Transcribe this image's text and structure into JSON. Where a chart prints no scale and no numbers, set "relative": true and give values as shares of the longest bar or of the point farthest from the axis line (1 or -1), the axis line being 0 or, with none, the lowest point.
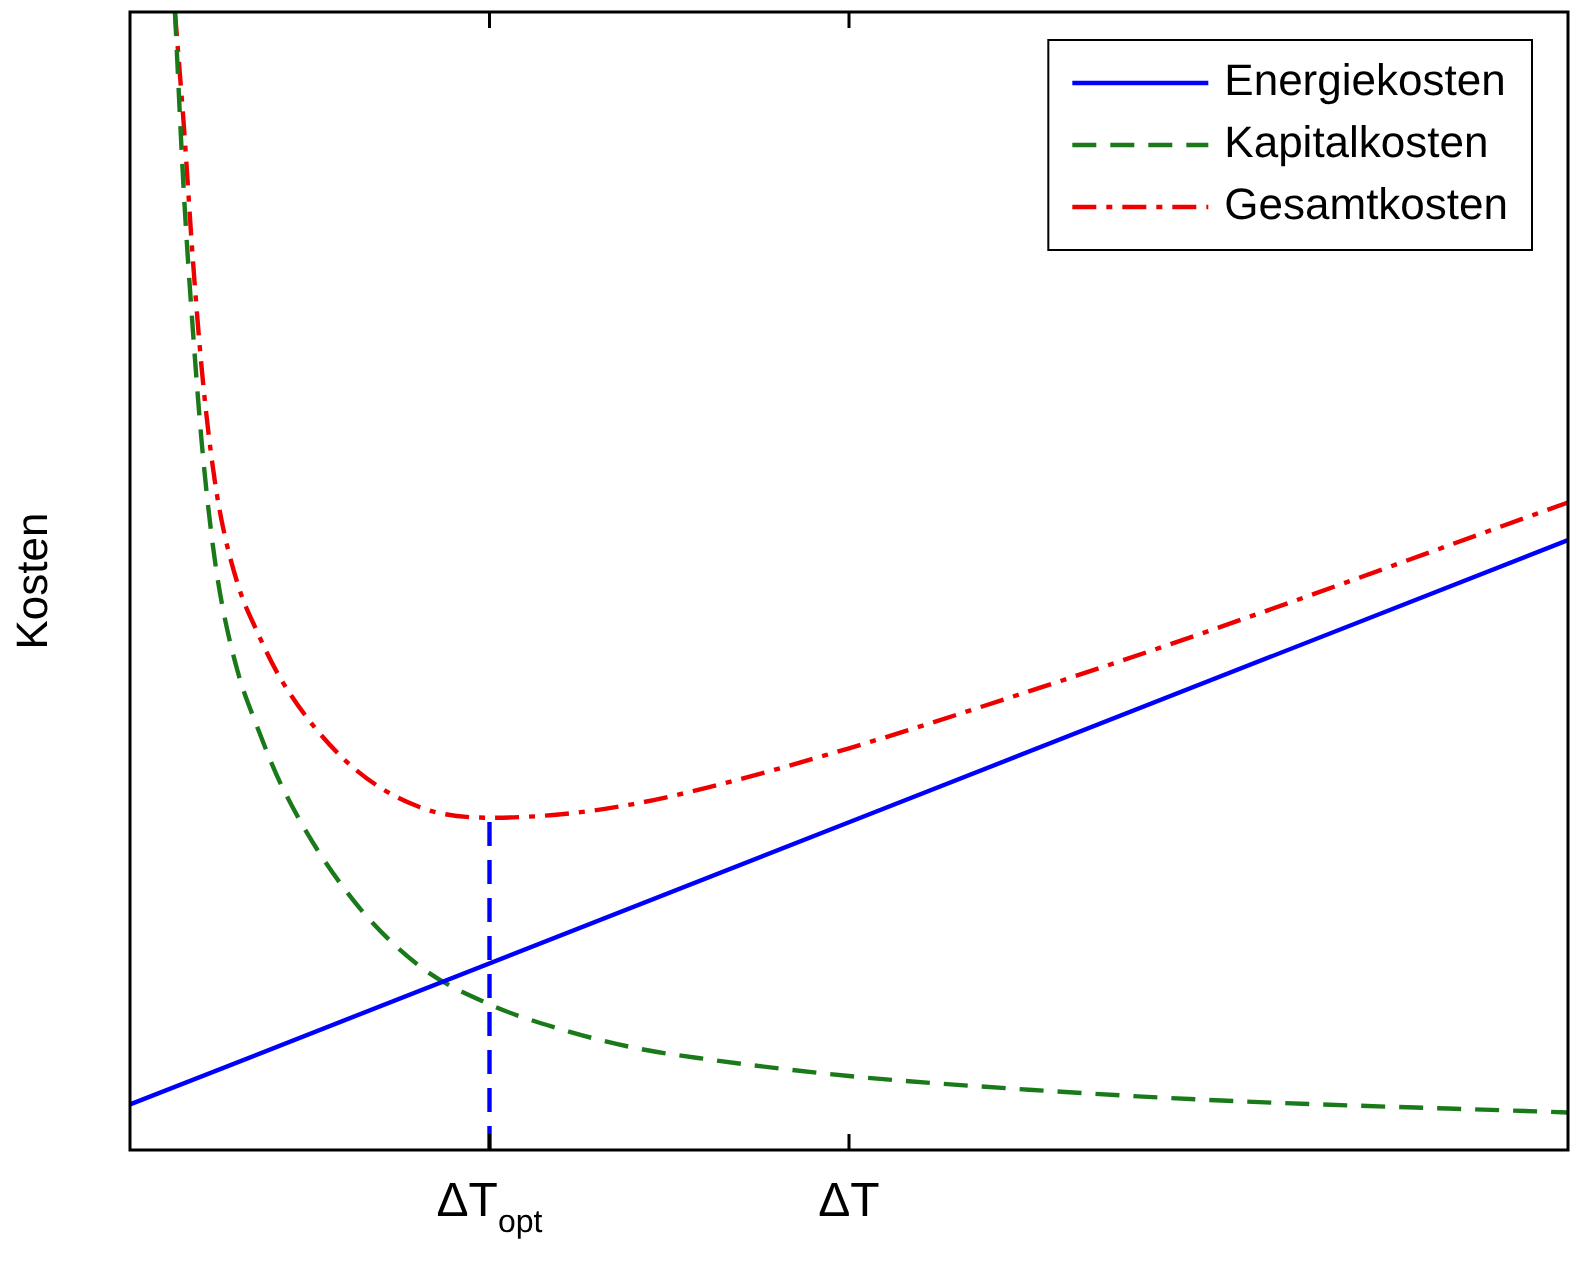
{
  "chart_data": {
    "type": "line",
    "relative": true,
    "ylabel": "Kosten",
    "categories": [
      null,
      null,
      null,
      null,
      null,
      null,
      null,
      null,
      null,
      null,
      null,
      null,
      null,
      null,
      null,
      null,
      null,
      null,
      null,
      null,
      null,
      null,
      null,
      null,
      null,
      null,
      null,
      null,
      null,
      null,
      null,
      null,
      null,
      null,
      null,
      null,
      null,
      null,
      null,
      null,
      "ΔT$_{opt}$",
      null,
      null,
      null,
      null,
      null,
      null,
      null,
      null,
      null,
      null,
      null,
      null,
      null,
      null,
      null,
      null,
      null,
      null,
      null,
      null,
      null,
      null,
      null,
      null,
      null,
      null,
      null,
      null,
      null,
      null,
      null,
      null,
      null,
      null,
      null,
      null,
      null,
      null,
      null,
      "ΔT",
      null,
      null,
      null,
      null,
      null,
      null,
      null,
      null,
      null,
      null,
      null,
      null,
      null,
      null,
      null,
      null,
      null,
      null,
      null,
      null,
      null,
      null,
      null,
      null,
      null,
      null,
      null,
      null,
      null,
      null,
      null,
      null,
      null,
      null,
      null,
      null,
      null,
      null,
      null,
      null,
      null,
      null,
      null,
      null,
      null,
      null,
      null,
      null,
      null,
      null,
      null,
      null,
      null,
      null,
      null,
      null,
      null,
      null,
      null,
      null,
      null,
      null,
      null,
      null,
      null,
      null,
      null,
      null,
      null,
      null,
      null,
      null,
      null,
      null,
      null,
      null,
      null,
      null,
      null,
      null
    ],
    "legend": "top right",
    "grid": false,
    "marker": "none",
    "ref_lines": [
      {
        "axis": "x",
        "value": "ΔT$_{opt}$",
        "color": "#0000ff",
        "line_style": "dashed"
      }
    ],
    "series": [
      {
        "name": "Energiekosten",
        "color": "#0000ff",
        "line_style": "solid",
        "values": [
          0.04,
          null,
          null,
          null,
          null,
          null,
          null,
          null,
          null,
          null,
          null,
          null,
          null,
          null,
          null,
          null,
          null,
          null,
          null,
          null,
          null,
          null,
          null,
          null,
          null,
          null,
          null,
          null,
          null,
          null,
          null,
          null,
          null,
          null,
          null,
          null,
          null,
          null,
          null,
          null,
          null,
          null,
          null,
          null,
          null,
          null,
          null,
          null,
          null,
          null,
          null,
          null,
          null,
          null,
          null,
          null,
          null,
          null,
          null,
          null,
          null,
          null,
          null,
          null,
          null,
          null,
          null,
          null,
          null,
          null,
          null,
          null,
          null,
          null,
          null,
          null,
          null,
          null,
          null,
          null,
          null,
          null,
          null,
          null,
          null,
          null,
          null,
          null,
          null,
          null,
          null,
          null,
          null,
          null,
          null,
          null,
          null,
          null,
          null,
          null,
          null,
          null,
          null,
          null,
          null,
          null,
          null,
          null,
          null,
          null,
          null,
          null,
          null,
          null,
          null,
          null,
          null,
          null,
          null,
          null,
          null,
          null,
          null,
          null,
          null,
          null,
          null,
          null,
          null,
          null,
          null,
          null,
          null,
          null,
          null,
          null,
          null,
          null,
          null,
          null,
          null,
          null,
          null,
          null,
          null,
          null,
          null,
          null,
          null,
          null,
          null,
          null,
          null,
          null,
          null,
          null,
          null,
          null,
          null,
          null,
          0.536
        ]
      },
      {
        "name": "Kapitalkosten",
        "color": "#1a7a1a",
        "line_style": "dashed",
        "values": [
          null,
          null,
          null,
          null,
          null,
          1.0,
          0.84,
          0.72,
          0.62,
          0.545,
          0.49,
          null,
          0.42,
          null,
          0.375,
          null,
          null,
          0.318,
          null,
          null,
          null,
          null,
          null,
          null,
          0.228,
          null,
          null,
          null,
          null,
          null,
          null,
          null,
          0.163,
          null,
          null,
          null,
          null,
          null,
          null,
          null,
          0.128,
          null,
          null,
          null,
          null,
          null,
          null,
          null,
          0.106,
          null,
          null,
          null,
          null,
          null,
          null,
          null,
          0.09,
          null,
          null,
          null,
          null,
          null,
          null,
          null,
          0.08,
          null,
          null,
          null,
          null,
          null,
          null,
          null,
          null,
          null,
          null,
          null,
          null,
          null,
          null,
          null,
          0.065,
          null,
          null,
          null,
          null,
          null,
          null,
          null,
          null,
          null,
          null,
          null,
          null,
          null,
          null,
          null,
          null,
          null,
          null,
          null,
          0.053,
          null,
          null,
          null,
          null,
          null,
          null,
          null,
          null,
          null,
          null,
          null,
          null,
          null,
          null,
          null,
          null,
          null,
          null,
          null,
          0.044,
          null,
          null,
          null,
          null,
          null,
          null,
          null,
          null,
          null,
          null,
          null,
          null,
          null,
          null,
          null,
          null,
          null,
          null,
          null,
          null,
          null,
          null,
          null,
          null,
          null,
          null,
          null,
          null,
          null,
          null,
          null,
          null,
          null,
          null,
          null,
          null,
          null,
          null,
          null,
          0.033
        ]
      },
      {
        "name": "Gesamtkosten",
        "color": "#ee0000",
        "line_style": "dashdot",
        "values": [
          null,
          null,
          null,
          null,
          null,
          1.0,
          0.899,
          0.782,
          0.685,
          0.613,
          0.561,
          null,
          0.497,
          null,
          0.458,
          null,
          null,
          0.411,
          null,
          null,
          null,
          null,
          null,
          null,
          0.342,
          null,
          null,
          null,
          null,
          null,
          null,
          null,
          0.302,
          null,
          null,
          null,
          null,
          null,
          null,
          null,
          0.292,
          null,
          null,
          null,
          null,
          null,
          null,
          null,
          0.295,
          null,
          null,
          null,
          null,
          null,
          null,
          null,
          0.304,
          null,
          null,
          null,
          null,
          null,
          null,
          null,
          0.318,
          null,
          null,
          null,
          null,
          null,
          null,
          null,
          null,
          null,
          null,
          null,
          null,
          null,
          null,
          null,
          0.353,
          null,
          null,
          null,
          null,
          null,
          null,
          null,
          null,
          null,
          null,
          null,
          null,
          null,
          null,
          null,
          null,
          null,
          null,
          null,
          0.403,
          null,
          null,
          null,
          null,
          null,
          null,
          null,
          null,
          null,
          null,
          null,
          null,
          null,
          null,
          null,
          null,
          null,
          null,
          null,
          0.456,
          null,
          null,
          null,
          null,
          null,
          null,
          null,
          null,
          null,
          null,
          null,
          null,
          null,
          null,
          null,
          null,
          null,
          null,
          null,
          null,
          null,
          null,
          null,
          null,
          null,
          null,
          null,
          null,
          null,
          null,
          null,
          null,
          null,
          null,
          null,
          null,
          null,
          null,
          null,
          0.569
        ]
      }
    ]
  }
}
